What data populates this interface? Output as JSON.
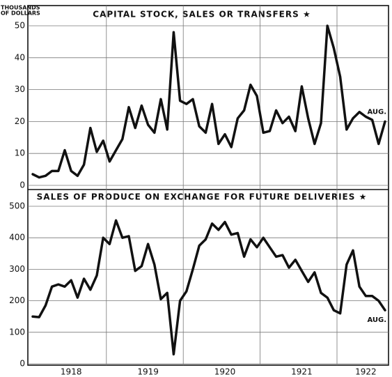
{
  "chart_data": [
    {
      "type": "line",
      "title": "CAPITAL STOCK, SALES OR TRANSFERS ★",
      "ylabel": [
        "THOUSANDS",
        "OF DOLLARS"
      ],
      "annotation": "AUG.",
      "categories": [
        null,
        null,
        null,
        null,
        null,
        null,
        null,
        null,
        null,
        null,
        null,
        null,
        null,
        null,
        null,
        null,
        null,
        null,
        null,
        null,
        null,
        null,
        null,
        null,
        null,
        null,
        null,
        null,
        null,
        null,
        null,
        null,
        null,
        null,
        null,
        null,
        null,
        null,
        null,
        null,
        null,
        null,
        null,
        null,
        null,
        null,
        null,
        null,
        null,
        null,
        null,
        null,
        null,
        null,
        null,
        null
      ],
      "series": [
        {
          "name": null,
          "color": "#111111",
          "values": [
            3.5,
            2.5,
            3,
            4.5,
            4.5,
            11,
            4.5,
            3,
            6.5,
            18,
            10.5,
            14,
            7.5,
            11,
            14.5,
            24.5,
            18,
            25,
            19,
            16.5,
            27,
            17.5,
            48,
            26.5,
            25.5,
            27,
            18.5,
            16.5,
            25.5,
            13,
            16,
            12,
            21,
            23.5,
            31.5,
            28,
            16.5,
            17,
            23.5,
            19.5,
            21.5,
            17,
            31,
            21,
            13,
            19.5,
            50,
            43,
            34,
            17.5,
            21,
            23,
            21.5,
            20.5,
            13,
            20
          ]
        }
      ],
      "ylim": [
        0,
        50
      ],
      "yticks": [
        0,
        10,
        20,
        30,
        40,
        50
      ],
      "grid": true
    },
    {
      "type": "line",
      "title": "SALES OF PRODUCE ON EXCHANGE FOR FUTURE DELIVERIES ★",
      "annotation": "AUG.",
      "categories": [
        null,
        null,
        null,
        null,
        null,
        null,
        "1918",
        null,
        null,
        null,
        null,
        null,
        null,
        null,
        null,
        null,
        null,
        null,
        "1919",
        null,
        null,
        null,
        null,
        null,
        null,
        null,
        null,
        null,
        null,
        null,
        "1920",
        null,
        null,
        null,
        null,
        null,
        null,
        null,
        null,
        null,
        null,
        null,
        "1921",
        null,
        null,
        null,
        null,
        null,
        null,
        null,
        null,
        null,
        "1922",
        null,
        null,
        null
      ],
      "series": [
        {
          "name": null,
          "color": "#111111",
          "values": [
            150,
            148,
            185,
            245,
            252,
            245,
            265,
            210,
            270,
            235,
            280,
            400,
            380,
            455,
            400,
            405,
            295,
            310,
            380,
            315,
            205,
            225,
            30,
            200,
            230,
            300,
            375,
            395,
            445,
            425,
            450,
            410,
            415,
            340,
            395,
            370,
            400,
            370,
            340,
            345,
            305,
            330,
            295,
            260,
            290,
            225,
            210,
            170,
            160,
            315,
            360,
            245,
            215,
            215,
            200,
            170
          ]
        }
      ],
      "ylim": [
        0,
        500
      ],
      "yticks": [
        0,
        100,
        200,
        300,
        400,
        500
      ],
      "grid": true
    }
  ]
}
